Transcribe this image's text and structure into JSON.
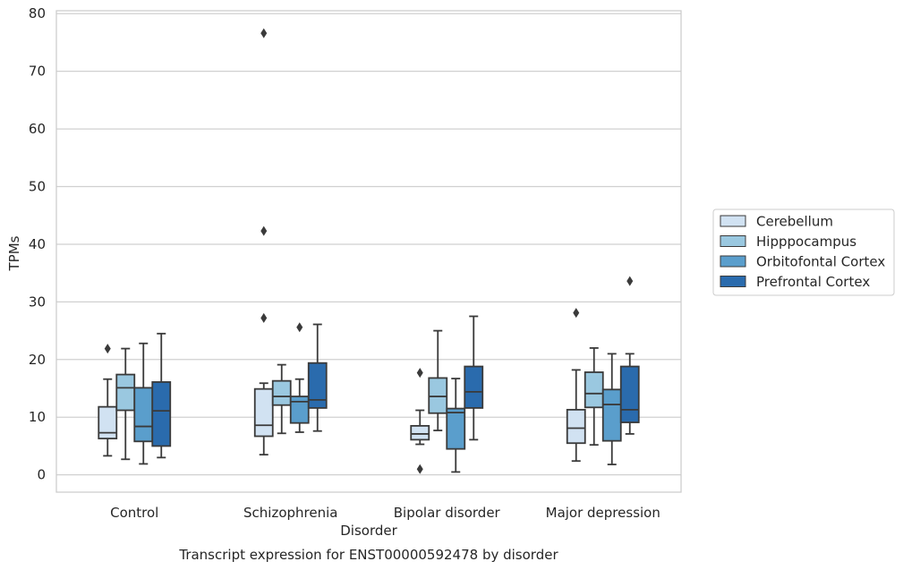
{
  "chart_data": {
    "type": "box",
    "title": "",
    "xlabel": "Disorder",
    "ylabel": "TPMs",
    "caption": "Transcript expression for ENST00000592478 by disorder",
    "ylim": [
      -3,
      80.5
    ],
    "yticks": [
      0,
      10,
      20,
      30,
      40,
      50,
      60,
      70,
      80
    ],
    "grid": "horizontal",
    "legend_position": "right",
    "categories": [
      "Control",
      "Schizophrenia",
      "Bipolar disorder",
      "Major depression"
    ],
    "series": [
      {
        "name": "Cerebellum",
        "color": "#d1e2f2",
        "boxes": [
          {
            "whisker_low": 3.3,
            "q1": 6.3,
            "median": 7.3,
            "q3": 11.8,
            "whisker_high": 16.6,
            "outliers": [
              21.9
            ]
          },
          {
            "whisker_low": 3.5,
            "q1": 6.7,
            "median": 8.6,
            "q3": 14.9,
            "whisker_high": 15.9,
            "outliers": [
              27.2,
              42.3,
              76.6
            ]
          },
          {
            "whisker_low": 5.3,
            "q1": 6.1,
            "median": 7.1,
            "q3": 8.5,
            "whisker_high": 11.2,
            "outliers": [
              1.0,
              17.7
            ]
          },
          {
            "whisker_low": 2.4,
            "q1": 5.5,
            "median": 8.1,
            "q3": 11.3,
            "whisker_high": 18.2,
            "outliers": [
              28.1
            ]
          }
        ]
      },
      {
        "name": "Hipppocampus",
        "color": "#9ac8e0",
        "boxes": [
          {
            "whisker_low": 2.7,
            "q1": 11.2,
            "median": 15.1,
            "q3": 17.4,
            "whisker_high": 21.9,
            "outliers": []
          },
          {
            "whisker_low": 7.2,
            "q1": 12.1,
            "median": 13.6,
            "q3": 16.3,
            "whisker_high": 19.1,
            "outliers": []
          },
          {
            "whisker_low": 7.7,
            "q1": 10.7,
            "median": 13.6,
            "q3": 16.8,
            "whisker_high": 25.0,
            "outliers": []
          },
          {
            "whisker_low": 5.2,
            "q1": 11.7,
            "median": 14.1,
            "q3": 17.8,
            "whisker_high": 22.0,
            "outliers": []
          }
        ]
      },
      {
        "name": "Orbitofontal Cortex",
        "color": "#5a9ecc",
        "boxes": [
          {
            "whisker_low": 1.9,
            "q1": 5.8,
            "median": 8.4,
            "q3": 15.1,
            "whisker_high": 22.8,
            "outliers": []
          },
          {
            "whisker_low": 7.4,
            "q1": 9.0,
            "median": 12.7,
            "q3": 13.6,
            "whisker_high": 16.6,
            "outliers": [
              25.6
            ]
          },
          {
            "whisker_low": 0.5,
            "q1": 4.5,
            "median": 10.8,
            "q3": 11.5,
            "whisker_high": 16.7,
            "outliers": []
          },
          {
            "whisker_low": 1.8,
            "q1": 5.9,
            "median": 12.2,
            "q3": 14.8,
            "whisker_high": 21.0,
            "outliers": []
          }
        ]
      },
      {
        "name": "Prefrontal Cortex",
        "color": "#2a6bad",
        "boxes": [
          {
            "whisker_low": 3.0,
            "q1": 5.0,
            "median": 11.1,
            "q3": 16.1,
            "whisker_high": 24.5,
            "outliers": []
          },
          {
            "whisker_low": 7.6,
            "q1": 11.6,
            "median": 13.0,
            "q3": 19.4,
            "whisker_high": 26.1,
            "outliers": []
          },
          {
            "whisker_low": 6.1,
            "q1": 11.6,
            "median": 14.4,
            "q3": 18.8,
            "whisker_high": 27.5,
            "outliers": []
          },
          {
            "whisker_low": 7.1,
            "q1": 9.1,
            "median": 11.3,
            "q3": 18.8,
            "whisker_high": 21.0,
            "outliers": [
              33.6
            ]
          }
        ]
      }
    ]
  }
}
